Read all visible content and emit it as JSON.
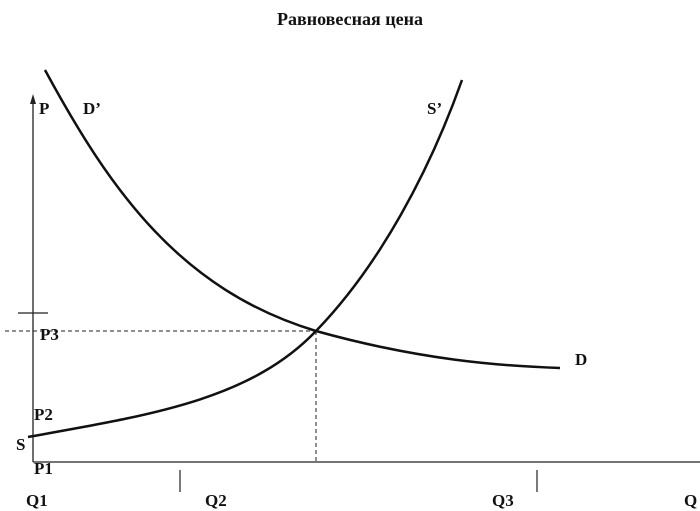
{
  "title": "Равновесная цена",
  "labels": {
    "p": "P",
    "d_prime": "D’",
    "s_prime": "S’",
    "p3": "P3",
    "d": "D",
    "p2": "P2",
    "s": "S",
    "p1": "P1",
    "q1": "Q1",
    "q2": "Q2",
    "q3": "Q3",
    "q": "Q"
  }
}
